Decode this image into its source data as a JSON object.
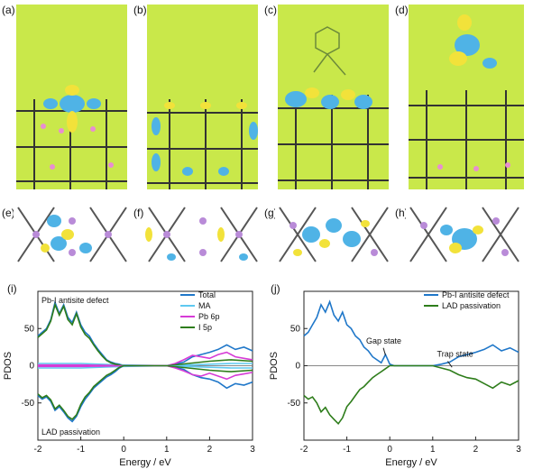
{
  "panels": {
    "top": [
      "(a)",
      "(b)",
      "(c)",
      "(d)"
    ],
    "middle": [
      "(e)",
      "(f)",
      "(g)",
      "(h)"
    ],
    "charts": [
      "(i)",
      "(j)"
    ]
  },
  "chart_data": [
    {
      "type": "line",
      "panel": "(i)",
      "title": "",
      "annotations": [
        "Pb-I antisite defect",
        "LAD passivation"
      ],
      "xlabel": "Energy / eV",
      "ylabel": "PDOS",
      "xlim": [
        -2,
        3
      ],
      "ylim": [
        -100,
        100
      ],
      "xticks": [
        -2,
        -1,
        0,
        1,
        2,
        3
      ],
      "yticks": [
        -50,
        0,
        50
      ],
      "grid": false,
      "legend": "top-right",
      "series": [
        {
          "name": "Total",
          "color": "#1f77c9",
          "x": [
            -2,
            -1.9,
            -1.8,
            -1.7,
            -1.6,
            -1.5,
            -1.4,
            -1.3,
            -1.2,
            -1.1,
            -1,
            -0.9,
            -0.8,
            -0.7,
            -0.6,
            -0.5,
            -0.4,
            -0.3,
            -0.2,
            -0.1,
            0,
            0.1,
            0.5,
            1,
            1.2,
            1.4,
            1.6,
            1.8,
            2,
            2.2,
            2.4,
            2.6,
            2.8,
            3
          ],
          "y": [
            40,
            45,
            50,
            62,
            85,
            70,
            82,
            65,
            58,
            72,
            55,
            45,
            40,
            30,
            22,
            15,
            8,
            5,
            3,
            2,
            0,
            0,
            0,
            0,
            2,
            5,
            12,
            15,
            18,
            22,
            28,
            22,
            25,
            20
          ]
        },
        {
          "name": "MA",
          "color": "#5ec8f0",
          "x": [
            -2,
            -1,
            0,
            1,
            1.5,
            2,
            2.5,
            3
          ],
          "y": [
            3,
            3,
            1,
            0,
            1,
            2,
            3,
            3
          ]
        },
        {
          "name": "Pb 6p",
          "color": "#d63bd6",
          "x": [
            -2,
            -1,
            0,
            1,
            1.2,
            1.4,
            1.6,
            1.8,
            2,
            2.2,
            2.4,
            2.6,
            2.8,
            3
          ],
          "y": [
            1,
            1,
            0,
            0,
            3,
            8,
            14,
            12,
            10,
            15,
            18,
            12,
            10,
            8
          ]
        },
        {
          "name": "I 5p",
          "color": "#2e7d1b",
          "x": [
            -2,
            -1.9,
            -1.8,
            -1.7,
            -1.6,
            -1.5,
            -1.4,
            -1.3,
            -1.2,
            -1.1,
            -1,
            -0.9,
            -0.8,
            -0.7,
            -0.6,
            -0.5,
            -0.4,
            -0.3,
            -0.2,
            -0.1,
            0,
            0.1,
            0.5,
            1,
            1.5,
            2,
            2.5,
            3
          ],
          "y": [
            38,
            43,
            48,
            60,
            82,
            68,
            80,
            62,
            55,
            70,
            52,
            42,
            37,
            28,
            20,
            13,
            7,
            4,
            2,
            1,
            0,
            0,
            0,
            0,
            3,
            6,
            8,
            6
          ]
        }
      ],
      "series_lower": [
        {
          "name": "Total",
          "color": "#1f77c9",
          "x": [
            -2,
            -1.9,
            -1.8,
            -1.7,
            -1.6,
            -1.5,
            -1.4,
            -1.3,
            -1.2,
            -1.1,
            -1,
            -0.9,
            -0.8,
            -0.7,
            -0.6,
            -0.5,
            -0.4,
            -0.3,
            -0.2,
            -0.1,
            0,
            0.1,
            0.5,
            1,
            1.2,
            1.4,
            1.6,
            1.8,
            2,
            2.2,
            2.4,
            2.6,
            2.8,
            3
          ],
          "y": [
            -40,
            -45,
            -42,
            -48,
            -60,
            -55,
            -62,
            -70,
            -75,
            -68,
            -55,
            -45,
            -38,
            -30,
            -25,
            -20,
            -15,
            -12,
            -8,
            -3,
            0,
            0,
            0,
            0,
            -2,
            -5,
            -12,
            -16,
            -18,
            -22,
            -30,
            -24,
            -26,
            -22
          ]
        },
        {
          "name": "MA",
          "color": "#5ec8f0",
          "x": [
            -2,
            -1,
            0,
            1,
            1.5,
            2,
            2.5,
            3
          ],
          "y": [
            -3,
            -3,
            -1,
            0,
            -1,
            -2,
            -3,
            -3
          ]
        },
        {
          "name": "Pb 6p",
          "color": "#d63bd6",
          "x": [
            -2,
            -1,
            0,
            1,
            1.2,
            1.4,
            1.6,
            1.8,
            2,
            2.2,
            2.4,
            2.6,
            2.8,
            3
          ],
          "y": [
            -1,
            -1,
            0,
            0,
            -3,
            -7,
            -12,
            -14,
            -10,
            -14,
            -18,
            -13,
            -11,
            -9
          ]
        },
        {
          "name": "I 5p",
          "color": "#2e7d1b",
          "x": [
            -2,
            -1.9,
            -1.8,
            -1.7,
            -1.6,
            -1.5,
            -1.4,
            -1.3,
            -1.2,
            -1.1,
            -1,
            -0.9,
            -0.8,
            -0.7,
            -0.6,
            -0.5,
            -0.4,
            -0.3,
            -0.2,
            -0.1,
            0,
            0.1,
            0.5,
            1,
            1.5,
            2,
            2.5,
            3
          ],
          "y": [
            -38,
            -43,
            -40,
            -46,
            -58,
            -53,
            -60,
            -68,
            -72,
            -66,
            -52,
            -42,
            -36,
            -28,
            -23,
            -18,
            -13,
            -10,
            -6,
            -2,
            0,
            0,
            0,
            0,
            -3,
            -6,
            -8,
            -6
          ]
        }
      ]
    },
    {
      "type": "line",
      "panel": "(j)",
      "title": "",
      "annotations": [
        "Gap state",
        "Trap state"
      ],
      "xlabel": "Energy / eV",
      "ylabel": "PDOS",
      "xlim": [
        -2,
        3
      ],
      "ylim": [
        -100,
        100
      ],
      "xticks": [
        -2,
        -1,
        0,
        1,
        2,
        3
      ],
      "yticks": [
        -50,
        0,
        50
      ],
      "grid": false,
      "legend": "top-right",
      "series": [
        {
          "name": "Pb-I antisite defect",
          "color": "#1f77c9",
          "x": [
            -2,
            -1.9,
            -1.8,
            -1.7,
            -1.6,
            -1.5,
            -1.4,
            -1.3,
            -1.2,
            -1.1,
            -1,
            -0.9,
            -0.8,
            -0.7,
            -0.6,
            -0.5,
            -0.4,
            -0.3,
            -0.2,
            -0.1,
            0,
            0.1,
            0.5,
            1,
            1.2,
            1.4,
            1.6,
            1.8,
            2,
            2.2,
            2.4,
            2.6,
            2.8,
            3
          ],
          "y": [
            40,
            45,
            55,
            65,
            82,
            72,
            86,
            68,
            60,
            72,
            55,
            50,
            40,
            35,
            25,
            20,
            12,
            8,
            4,
            15,
            2,
            0,
            0,
            0,
            2,
            5,
            12,
            15,
            18,
            22,
            28,
            20,
            24,
            18
          ]
        },
        {
          "name": "LAD passivation",
          "color": "#2e7d1b",
          "x": [
            -2,
            -1.9,
            -1.8,
            -1.7,
            -1.6,
            -1.5,
            -1.4,
            -1.3,
            -1.2,
            -1.1,
            -1,
            -0.9,
            -0.8,
            -0.7,
            -0.6,
            -0.5,
            -0.4,
            -0.3,
            -0.2,
            -0.1,
            0,
            0.1,
            0.5,
            1,
            1.2,
            1.4,
            1.6,
            1.8,
            2,
            2.2,
            2.4,
            2.6,
            2.8,
            3
          ],
          "y": [
            -40,
            -45,
            -42,
            -50,
            -62,
            -56,
            -66,
            -72,
            -78,
            -70,
            -55,
            -48,
            -40,
            -32,
            -28,
            -22,
            -16,
            -12,
            -8,
            -4,
            0,
            0,
            0,
            0,
            -3,
            -6,
            -12,
            -16,
            -18,
            -24,
            -30,
            -22,
            -26,
            -20
          ]
        }
      ]
    }
  ]
}
